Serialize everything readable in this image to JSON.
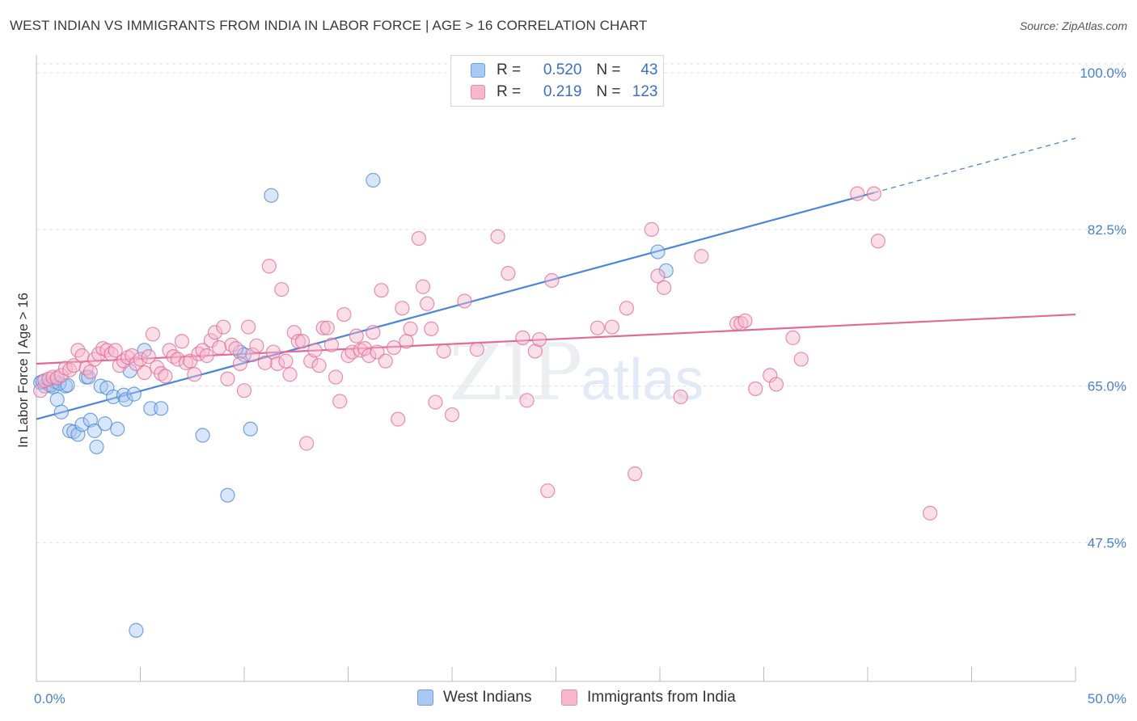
{
  "header": {
    "title": "WEST INDIAN VS IMMIGRANTS FROM INDIA IN LABOR FORCE | AGE > 16 CORRELATION CHART",
    "source": "Source: ZipAtlas.com"
  },
  "watermark": {
    "zip": "ZIP",
    "atlas": "atlas"
  },
  "legend_top": {
    "rows": [
      {
        "r_label": "R =",
        "r_value": "0.520",
        "n_label": "N =",
        "n_value": "43",
        "color": "#a9c8f2"
      },
      {
        "r_label": "R =",
        "r_value": "0.219",
        "n_label": "N =",
        "n_value": "123",
        "color": "#f6b8cc"
      }
    ]
  },
  "legend_bottom": {
    "items": [
      {
        "label": "West Indians",
        "color": "#a9c8f2"
      },
      {
        "label": "Immigrants from India",
        "color": "#f6b8cc"
      }
    ]
  },
  "chart_data": {
    "type": "scatter",
    "title": "WEST INDIAN VS IMMIGRANTS FROM INDIA IN LABOR FORCE | AGE > 16 CORRELATION CHART",
    "xlabel": "",
    "ylabel": "In Labor Force | Age > 16",
    "xlim": [
      0,
      50
    ],
    "ylim": [
      32,
      102
    ],
    "x_tick_labels": [
      "0.0%",
      "50.0%"
    ],
    "y_ticks": [
      47.5,
      65.0,
      82.5,
      100.0
    ],
    "y_tick_labels": [
      "47.5%",
      "65.0%",
      "82.5%",
      "100.0%"
    ],
    "grid": true,
    "legend_position": "top-center",
    "series": [
      {
        "name": "West Indians",
        "color": "#4a85d8",
        "fill": "#a9c8f2",
        "trend": {
          "x": [
            0,
            50
          ],
          "y": [
            61.3,
            92.7
          ],
          "solid_until": 40.3
        },
        "points": [
          [
            0.2,
            65.4
          ],
          [
            0.4,
            65.0
          ],
          [
            0.6,
            65.2
          ],
          [
            0.8,
            64.9
          ],
          [
            0.9,
            65.5
          ],
          [
            1.0,
            63.5
          ],
          [
            1.2,
            62.1
          ],
          [
            1.4,
            65.0
          ],
          [
            1.6,
            60.0
          ],
          [
            1.8,
            59.9
          ],
          [
            2.0,
            59.6
          ],
          [
            2.2,
            60.7
          ],
          [
            2.4,
            66.0
          ],
          [
            2.5,
            66.0
          ],
          [
            2.6,
            61.2
          ],
          [
            2.8,
            60.0
          ],
          [
            2.9,
            58.2
          ],
          [
            3.1,
            65.0
          ],
          [
            3.3,
            60.8
          ],
          [
            3.4,
            64.8
          ],
          [
            3.7,
            63.8
          ],
          [
            3.9,
            60.2
          ],
          [
            4.2,
            64.0
          ],
          [
            4.3,
            63.5
          ],
          [
            4.5,
            66.7
          ],
          [
            4.7,
            64.1
          ],
          [
            4.8,
            37.7
          ],
          [
            5.2,
            69.0
          ],
          [
            5.5,
            62.5
          ],
          [
            6.0,
            62.5
          ],
          [
            8.0,
            59.5
          ],
          [
            9.2,
            52.8
          ],
          [
            9.8,
            68.8
          ],
          [
            10.0,
            68.5
          ],
          [
            10.3,
            60.2
          ],
          [
            11.3,
            86.3
          ],
          [
            16.2,
            88.0
          ],
          [
            29.9,
            80.0
          ],
          [
            30.3,
            77.9
          ],
          [
            0.3,
            65.5
          ],
          [
            0.7,
            65.1
          ],
          [
            1.1,
            65.3
          ],
          [
            1.5,
            65.1
          ]
        ]
      },
      {
        "name": "Immigrants from India",
        "color": "#e26a96",
        "fill": "#f6b8cc",
        "trend": {
          "x": [
            0,
            50
          ],
          "y": [
            67.5,
            73.0
          ]
        },
        "points": [
          [
            0.2,
            64.5
          ],
          [
            0.4,
            65.6
          ],
          [
            0.6,
            65.8
          ],
          [
            0.8,
            66.0
          ],
          [
            1.0,
            65.9
          ],
          [
            1.2,
            66.2
          ],
          [
            1.4,
            67.0
          ],
          [
            1.6,
            66.8
          ],
          [
            1.8,
            67.3
          ],
          [
            2.0,
            69.0
          ],
          [
            2.2,
            68.4
          ],
          [
            2.4,
            67.0
          ],
          [
            2.6,
            66.6
          ],
          [
            2.8,
            68.0
          ],
          [
            3.0,
            68.6
          ],
          [
            3.2,
            69.2
          ],
          [
            3.4,
            69.0
          ],
          [
            3.6,
            68.6
          ],
          [
            3.8,
            69.0
          ],
          [
            4.0,
            67.3
          ],
          [
            4.2,
            67.8
          ],
          [
            4.4,
            68.2
          ],
          [
            4.6,
            68.4
          ],
          [
            4.8,
            67.5
          ],
          [
            5.0,
            68.0
          ],
          [
            5.2,
            66.5
          ],
          [
            5.4,
            68.3
          ],
          [
            5.6,
            70.8
          ],
          [
            5.8,
            67.1
          ],
          [
            6.0,
            66.4
          ],
          [
            6.2,
            66.1
          ],
          [
            6.4,
            69.0
          ],
          [
            6.6,
            68.3
          ],
          [
            6.8,
            68.0
          ],
          [
            7.0,
            70.0
          ],
          [
            7.2,
            67.6
          ],
          [
            7.4,
            67.8
          ],
          [
            7.6,
            66.3
          ],
          [
            7.8,
            68.6
          ],
          [
            8.0,
            69.0
          ],
          [
            8.2,
            68.4
          ],
          [
            8.4,
            70.1
          ],
          [
            8.6,
            71.0
          ],
          [
            8.8,
            69.3
          ],
          [
            9.0,
            71.6
          ],
          [
            9.2,
            65.8
          ],
          [
            9.4,
            69.6
          ],
          [
            9.6,
            69.2
          ],
          [
            9.8,
            67.5
          ],
          [
            10.0,
            64.5
          ],
          [
            10.2,
            71.6
          ],
          [
            10.4,
            68.5
          ],
          [
            10.6,
            69.5
          ],
          [
            11.0,
            67.6
          ],
          [
            11.2,
            78.4
          ],
          [
            11.4,
            68.8
          ],
          [
            11.6,
            67.5
          ],
          [
            11.8,
            75.8
          ],
          [
            12.0,
            67.8
          ],
          [
            12.2,
            66.3
          ],
          [
            12.4,
            71.0
          ],
          [
            12.6,
            70.0
          ],
          [
            12.8,
            70.0
          ],
          [
            13.0,
            58.6
          ],
          [
            13.2,
            67.8
          ],
          [
            13.4,
            69.0
          ],
          [
            13.6,
            67.3
          ],
          [
            13.8,
            71.5
          ],
          [
            14.0,
            71.5
          ],
          [
            14.2,
            69.6
          ],
          [
            14.4,
            66.0
          ],
          [
            14.6,
            63.3
          ],
          [
            14.8,
            73.0
          ],
          [
            15.0,
            68.4
          ],
          [
            15.2,
            68.8
          ],
          [
            15.4,
            70.6
          ],
          [
            15.6,
            69.0
          ],
          [
            15.8,
            69.2
          ],
          [
            16.0,
            68.4
          ],
          [
            16.2,
            71.0
          ],
          [
            16.4,
            68.8
          ],
          [
            16.6,
            75.7
          ],
          [
            16.8,
            67.8
          ],
          [
            17.2,
            69.3
          ],
          [
            17.4,
            61.3
          ],
          [
            17.6,
            73.7
          ],
          [
            17.8,
            70.0
          ],
          [
            18.0,
            71.4
          ],
          [
            18.4,
            81.5
          ],
          [
            18.6,
            76.1
          ],
          [
            18.8,
            74.2
          ],
          [
            19.0,
            71.4
          ],
          [
            19.2,
            63.2
          ],
          [
            19.6,
            68.9
          ],
          [
            20.0,
            61.8
          ],
          [
            20.6,
            74.5
          ],
          [
            21.2,
            69.1
          ],
          [
            22.2,
            81.7
          ],
          [
            22.7,
            77.6
          ],
          [
            23.4,
            70.4
          ],
          [
            23.6,
            63.4
          ],
          [
            24.0,
            68.9
          ],
          [
            24.2,
            70.2
          ],
          [
            24.6,
            53.3
          ],
          [
            24.8,
            76.8
          ],
          [
            27.0,
            71.5
          ],
          [
            27.7,
            71.6
          ],
          [
            28.4,
            73.7
          ],
          [
            28.8,
            55.2
          ],
          [
            29.6,
            82.5
          ],
          [
            29.9,
            77.3
          ],
          [
            30.2,
            76.0
          ],
          [
            31.0,
            63.8
          ],
          [
            32.0,
            79.5
          ],
          [
            33.7,
            72.0
          ],
          [
            33.9,
            72.0
          ],
          [
            34.1,
            72.3
          ],
          [
            34.6,
            64.7
          ],
          [
            35.3,
            66.2
          ],
          [
            35.6,
            65.2
          ],
          [
            36.4,
            70.4
          ],
          [
            36.8,
            68.0
          ],
          [
            39.5,
            86.5
          ],
          [
            40.3,
            86.5
          ],
          [
            40.5,
            81.2
          ],
          [
            43.0,
            50.8
          ]
        ]
      }
    ]
  }
}
